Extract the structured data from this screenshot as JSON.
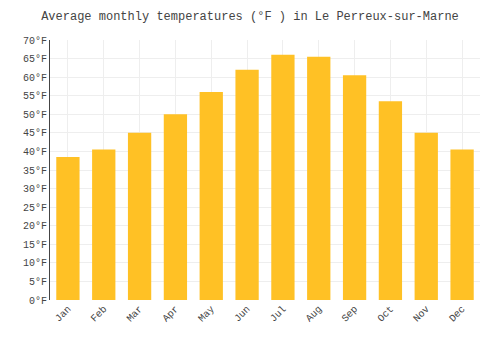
{
  "chart_data": {
    "type": "bar",
    "title": "Average monthly temperatures (°F ) in Le Perreux-sur-Marne",
    "categories": [
      "Jan",
      "Feb",
      "Mar",
      "Apr",
      "May",
      "Jun",
      "Jul",
      "Aug",
      "Sep",
      "Oct",
      "Nov",
      "Dec"
    ],
    "values": [
      38.5,
      40.5,
      45.0,
      50.0,
      56.0,
      62.0,
      66.0,
      65.5,
      60.5,
      53.5,
      45.0,
      40.5
    ],
    "color": "#FFC125",
    "ylim": [
      0,
      70
    ],
    "yticks": [
      {
        "value": 0,
        "label": "0°F"
      },
      {
        "value": 5,
        "label": "5°F"
      },
      {
        "value": 10,
        "label": "10°F"
      },
      {
        "value": 15,
        "label": "15°F"
      },
      {
        "value": 20,
        "label": "20°F"
      },
      {
        "value": 25,
        "label": "25°F"
      },
      {
        "value": 30,
        "label": "30°F"
      },
      {
        "value": 35,
        "label": "35°F"
      },
      {
        "value": 40,
        "label": "40°F"
      },
      {
        "value": 45,
        "label": "45°F"
      },
      {
        "value": 50,
        "label": "50°F"
      },
      {
        "value": 55,
        "label": "55°F"
      },
      {
        "value": 60,
        "label": "60°F"
      },
      {
        "value": 65,
        "label": "65°F"
      },
      {
        "value": 70,
        "label": "70°F"
      }
    ],
    "grid": true
  }
}
